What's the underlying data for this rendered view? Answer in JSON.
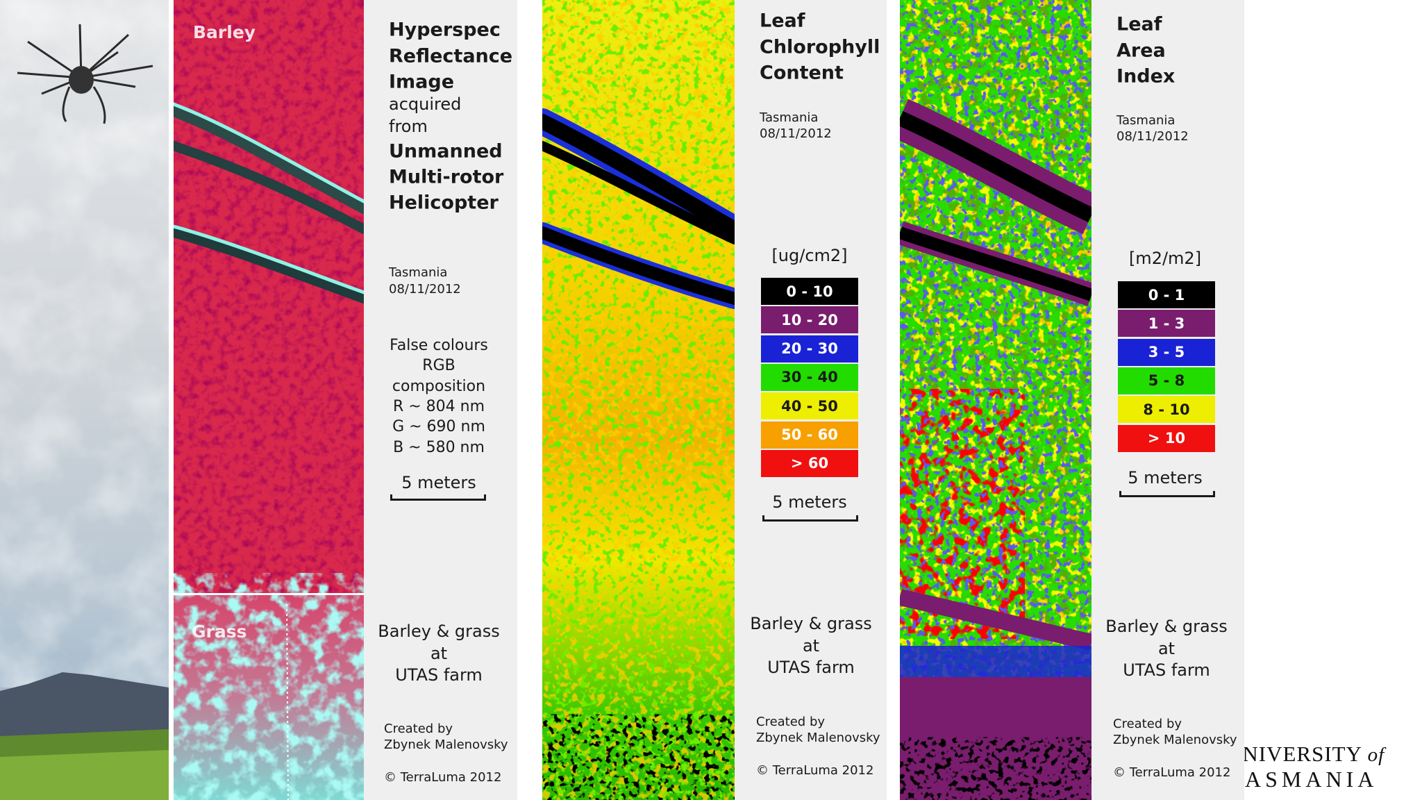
{
  "reflectance": {
    "top_label": "Barley",
    "bottom_label": "Grass"
  },
  "reflectance_info": {
    "title": [
      "Hyperspec",
      "Reflectance",
      "Image"
    ],
    "subtitle": [
      "acquired",
      "from"
    ],
    "platform": [
      "Unmanned",
      "Multi-rotor",
      "Helicopter"
    ],
    "location": "Tasmania",
    "date": "08/11/2012",
    "description": [
      "False colours",
      "RGB",
      "composition",
      "R ~ 804 nm",
      "G ~ 690 nm",
      "B ~ 580 nm"
    ],
    "scale_label": "5 meters",
    "site": [
      "Barley & grass",
      "at",
      "UTAS farm"
    ],
    "credit": [
      "Created by",
      "Zbynek Malenovsky"
    ],
    "copyright": "© TerraLuma 2012"
  },
  "chlorophyll": {
    "title": [
      "Leaf",
      "Chlorophyll",
      "Content"
    ],
    "location": "Tasmania",
    "date": "08/11/2012",
    "unit": "[ug/cm2]",
    "legend": [
      {
        "label": "0 - 10",
        "color": "#000000",
        "text_color": "#ffffff"
      },
      {
        "label": "10 - 20",
        "color": "#7a1d6e",
        "text_color": "#ffffff"
      },
      {
        "label": "20 - 30",
        "color": "#1a22d6",
        "text_color": "#ffffff"
      },
      {
        "label": "30 - 40",
        "color": "#22dc00",
        "text_color": "#1a1a1a"
      },
      {
        "label": "40 - 50",
        "color": "#eeee00",
        "text_color": "#1a1a1a"
      },
      {
        "label": "50 - 60",
        "color": "#f7a000",
        "text_color": "#ffffff"
      },
      {
        "label": "> 60",
        "color": "#f01010",
        "text_color": "#ffffff"
      }
    ],
    "scale_label": "5 meters",
    "site": [
      "Barley & grass",
      "at",
      "UTAS farm"
    ],
    "credit": [
      "Created by",
      "Zbynek Malenovsky"
    ],
    "copyright": "© TerraLuma 2012"
  },
  "lai": {
    "title": [
      "Leaf",
      "Area",
      "Index"
    ],
    "location": "Tasmania",
    "date": "08/11/2012",
    "unit": "[m2/m2]",
    "legend": [
      {
        "label": "0 - 1",
        "color": "#000000",
        "text_color": "#ffffff"
      },
      {
        "label": "1 - 3",
        "color": "#7a1d6e",
        "text_color": "#ffffff"
      },
      {
        "label": "3 - 5",
        "color": "#1a22d6",
        "text_color": "#ffffff"
      },
      {
        "label": "5 - 8",
        "color": "#22dc00",
        "text_color": "#1a1a1a"
      },
      {
        "label": "8 - 10",
        "color": "#eeee00",
        "text_color": "#1a1a1a"
      },
      {
        "label": "> 10",
        "color": "#f01010",
        "text_color": "#ffffff"
      }
    ],
    "scale_label": "5 meters",
    "site": [
      "Barley & grass",
      "at",
      "UTAS farm"
    ],
    "credit": [
      "Created by",
      "Zbynek Malenovsky"
    ],
    "copyright": "© TerraLuma 2012"
  },
  "logo": {
    "line1": "UNIVERSITY",
    "of": "of",
    "line2": "TASMANIA"
  }
}
